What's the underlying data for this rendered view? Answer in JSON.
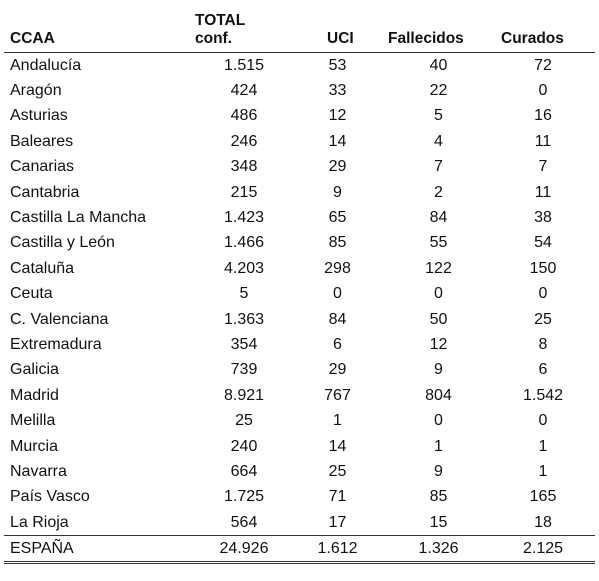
{
  "table": {
    "headers": {
      "region": "CCAA",
      "total_line1": "TOTAL",
      "total_line2": "conf.",
      "uci": "UCI",
      "fallecidos": "Fallecidos",
      "curados": "Curados"
    },
    "rows": [
      {
        "region": "Andalucía",
        "total": "1.515",
        "uci": "53",
        "fallecidos": "40",
        "curados": "72"
      },
      {
        "region": "Aragón",
        "total": "424",
        "uci": "33",
        "fallecidos": "22",
        "curados": "0"
      },
      {
        "region": "Asturias",
        "total": "486",
        "uci": "12",
        "fallecidos": "5",
        "curados": "16"
      },
      {
        "region": "Baleares",
        "total": "246",
        "uci": "14",
        "fallecidos": "4",
        "curados": "11"
      },
      {
        "region": "Canarias",
        "total": "348",
        "uci": "29",
        "fallecidos": "7",
        "curados": "7"
      },
      {
        "region": "Cantabria",
        "total": "215",
        "uci": "9",
        "fallecidos": "2",
        "curados": "11"
      },
      {
        "region": "Castilla La Mancha",
        "total": "1.423",
        "uci": "65",
        "fallecidos": "84",
        "curados": "38"
      },
      {
        "region": "Castilla y León",
        "total": "1.466",
        "uci": "85",
        "fallecidos": "55",
        "curados": "54"
      },
      {
        "region": "Cataluña",
        "total": "4.203",
        "uci": "298",
        "fallecidos": "122",
        "curados": "150"
      },
      {
        "region": "Ceuta",
        "total": "5",
        "uci": "0",
        "fallecidos": "0",
        "curados": "0"
      },
      {
        "region": "C. Valenciana",
        "total": "1.363",
        "uci": "84",
        "fallecidos": "50",
        "curados": "25"
      },
      {
        "region": "Extremadura",
        "total": "354",
        "uci": "6",
        "fallecidos": "12",
        "curados": "8"
      },
      {
        "region": "Galicia",
        "total": "739",
        "uci": "29",
        "fallecidos": "9",
        "curados": "6"
      },
      {
        "region": "Madrid",
        "total": "8.921",
        "uci": "767",
        "fallecidos": "804",
        "curados": "1.542"
      },
      {
        "region": "Melilla",
        "total": "25",
        "uci": "1",
        "fallecidos": "0",
        "curados": "0"
      },
      {
        "region": "Murcia",
        "total": "240",
        "uci": "14",
        "fallecidos": "1",
        "curados": "1"
      },
      {
        "region": "Navarra",
        "total": "664",
        "uci": "25",
        "fallecidos": "9",
        "curados": "1"
      },
      {
        "region": "País Vasco",
        "total": "1.725",
        "uci": "71",
        "fallecidos": "85",
        "curados": "165"
      },
      {
        "region": "La Rioja",
        "total": "564",
        "uci": "17",
        "fallecidos": "15",
        "curados": "18"
      }
    ],
    "total_row": {
      "region": "ESPAÑA",
      "total": "24.926",
      "uci": "1.612",
      "fallecidos": "1.326",
      "curados": "2.125"
    }
  }
}
